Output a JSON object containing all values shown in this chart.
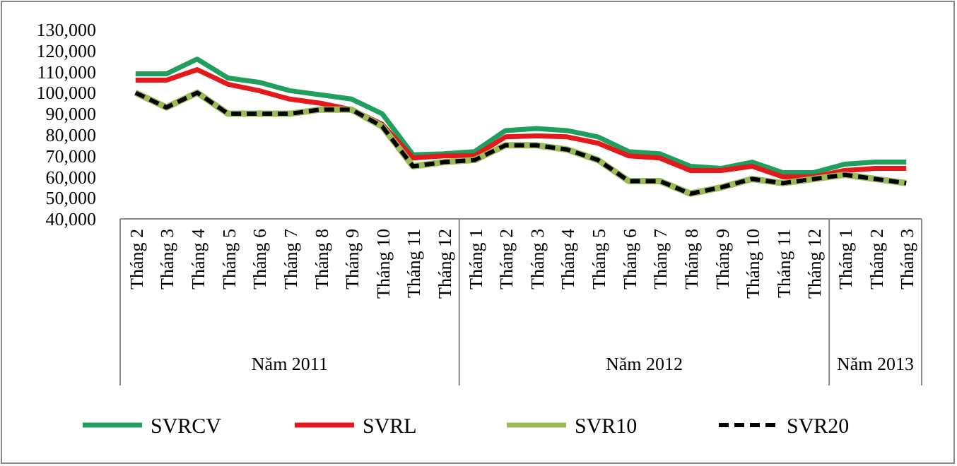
{
  "chart_data": {
    "type": "line",
    "categories": [
      "Tháng 2",
      "Tháng 3",
      "Tháng 4",
      "Tháng 5",
      "Tháng 6",
      "Tháng 7",
      "Tháng 8",
      "Tháng 9",
      "Tháng 10",
      "Tháng 11",
      "Tháng 12",
      "Tháng 1",
      "Tháng 2",
      "Tháng 3",
      "Tháng 4",
      "Tháng 5",
      "Tháng 6",
      "Tháng 7",
      "Tháng 8",
      "Tháng 9",
      "Tháng 10",
      "Tháng 11",
      "Tháng 12",
      "Tháng 1",
      "Tháng 2",
      "Tháng 3"
    ],
    "series": [
      {
        "name": "SVRCV",
        "color": "#1f9e5e",
        "values": [
          109000,
          109000,
          116000,
          107000,
          105000,
          101000,
          99000,
          97000,
          90000,
          70500,
          71000,
          72000,
          82000,
          83000,
          82000,
          79000,
          72000,
          71000,
          65000,
          64000,
          67000,
          62000,
          62000,
          66000,
          67000,
          67000
        ]
      },
      {
        "name": "SVRL",
        "color": "#e3191c",
        "values": [
          106000,
          106000,
          111000,
          104000,
          101000,
          97000,
          95000,
          92000,
          85000,
          69000,
          70000,
          70000,
          79000,
          79500,
          79000,
          76000,
          70000,
          69000,
          63000,
          63000,
          65000,
          60000,
          60000,
          63000,
          64000,
          64000
        ]
      },
      {
        "name": "SVR10",
        "color": "#9bbb59",
        "values": [
          100000,
          93000,
          100000,
          90000,
          90000,
          90000,
          92000,
          92000,
          84000,
          65000,
          67000,
          68000,
          75000,
          75000,
          73000,
          68000,
          58000,
          58000,
          52000,
          55000,
          59000,
          57000,
          59000,
          61000,
          59000,
          57000
        ]
      },
      {
        "name": "SVR20",
        "color": "#000000",
        "line_style": "dashed",
        "values": [
          100000,
          93000,
          100000,
          90000,
          90000,
          90000,
          92000,
          92000,
          84000,
          65000,
          67000,
          68000,
          75000,
          75000,
          73000,
          68000,
          58000,
          58000,
          52000,
          55000,
          59000,
          57000,
          59000,
          61000,
          59000,
          57000
        ]
      }
    ],
    "ylim": [
      40000,
      130000
    ],
    "yticks": [
      {
        "value": 40000,
        "label": "40,000"
      },
      {
        "value": 50000,
        "label": "50,000"
      },
      {
        "value": 60000,
        "label": "60,000"
      },
      {
        "value": 70000,
        "label": "70,000"
      },
      {
        "value": 80000,
        "label": "80,000"
      },
      {
        "value": 90000,
        "label": "90,000"
      },
      {
        "value": 100000,
        "label": "100,000"
      },
      {
        "value": 110000,
        "label": "110,000"
      },
      {
        "value": 120000,
        "label": "120,000"
      },
      {
        "value": 130000,
        "label": "130,000"
      }
    ],
    "annotations": [
      "Năm 2011",
      "Năm 2012",
      "Năm 2013"
    ],
    "grid": false,
    "legend": "bottom",
    "marker": "none"
  }
}
